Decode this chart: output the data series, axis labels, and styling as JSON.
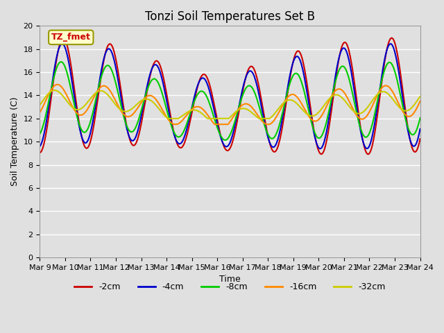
{
  "title": "Tonzi Soil Temperatures Set B",
  "xlabel": "Time",
  "ylabel": "Soil Temperature (C)",
  "annotation_text": "TZ_fmet",
  "annotation_bbox_facecolor": "#ffffcc",
  "annotation_bbox_edgecolor": "#999900",
  "series_colors": [
    "#cc0000",
    "#0000cc",
    "#00cc00",
    "#ff8800",
    "#cccc00"
  ],
  "series_labels": [
    "-2cm",
    "-4cm",
    "-8cm",
    "-16cm",
    "-32cm"
  ],
  "series_linewidths": [
    1.5,
    1.5,
    1.5,
    1.5,
    1.5
  ],
  "ylim": [
    0,
    20
  ],
  "yticks": [
    0,
    2,
    4,
    6,
    8,
    10,
    12,
    14,
    16,
    18,
    20
  ],
  "xtick_labels": [
    "Mar 9",
    "Mar 10",
    "Mar 11",
    "Mar 12",
    "Mar 13",
    "Mar 14",
    "Mar 15",
    "Mar 16",
    "Mar 17",
    "Mar 18",
    "Mar 19",
    "Mar 20",
    "Mar 21",
    "Mar 22",
    "Mar 23",
    "Mar 24"
  ],
  "bg_color": "#e0e0e0",
  "plot_bg_color": "#e0e0e0",
  "grid_color": "#ffffff",
  "title_fontsize": 12,
  "axis_label_fontsize": 9,
  "tick_fontsize": 8,
  "legend_fontsize": 9,
  "n_points": 600
}
